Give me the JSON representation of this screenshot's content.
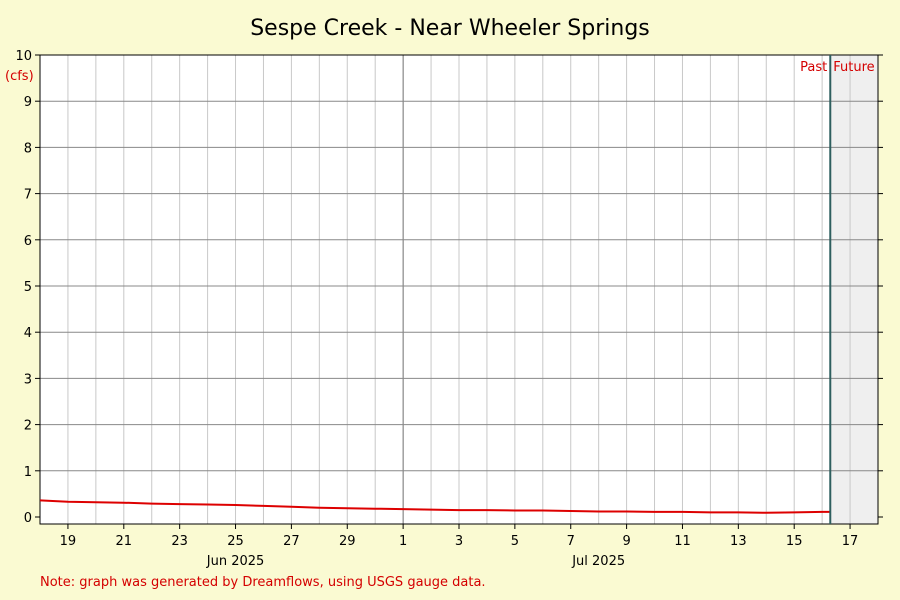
{
  "chart_data": {
    "type": "line",
    "title": "Sespe Creek - Near Wheeler Springs",
    "y_unit": "(cfs)",
    "ylim": [
      0,
      10
    ],
    "y_ticks": [
      0,
      1,
      2,
      3,
      4,
      5,
      6,
      7,
      8,
      9,
      10
    ],
    "x_start": "2025-06-18",
    "x_end": "2025-07-18",
    "x_tick_labels": [
      "19",
      "21",
      "23",
      "25",
      "27",
      "29",
      "1",
      "3",
      "5",
      "7",
      "9",
      "11",
      "13",
      "15",
      "17"
    ],
    "month_labels": [
      "Jun 2025",
      "Jul 2025"
    ],
    "now_marker": "2025-07-16T07:00",
    "past_label": "Past",
    "future_label": "Future",
    "grid": true,
    "colors": {
      "background": "#fafad2",
      "plot": "#ffffff",
      "future_zone": "#efefef",
      "series": "#dd0000",
      "now_line": "#2f5f5f",
      "grid": "#c8c8c8",
      "grid_major": "#707070"
    },
    "series": [
      {
        "x": [
          "2025-06-18T00:00",
          "2025-06-19T00:00",
          "2025-06-20T00:00",
          "2025-06-21T00:00",
          "2025-06-22T00:00",
          "2025-06-23T00:00",
          "2025-06-24T00:00",
          "2025-06-25T00:00",
          "2025-06-26T00:00",
          "2025-06-27T00:00",
          "2025-06-28T00:00",
          "2025-06-29T00:00",
          "2025-06-30T00:00",
          "2025-07-01T00:00",
          "2025-07-02T00:00",
          "2025-07-03T00:00",
          "2025-07-04T00:00",
          "2025-07-05T00:00",
          "2025-07-06T00:00",
          "2025-07-07T00:00",
          "2025-07-08T00:00",
          "2025-07-09T00:00",
          "2025-07-10T00:00",
          "2025-07-11T00:00",
          "2025-07-12T00:00",
          "2025-07-13T00:00",
          "2025-07-14T00:00",
          "2025-07-15T00:00",
          "2025-07-16T00:00",
          "2025-07-16T07:00"
        ],
        "values": [
          0.36,
          0.33,
          0.32,
          0.31,
          0.29,
          0.28,
          0.27,
          0.26,
          0.24,
          0.22,
          0.2,
          0.19,
          0.18,
          0.17,
          0.16,
          0.15,
          0.15,
          0.14,
          0.14,
          0.13,
          0.12,
          0.12,
          0.11,
          0.11,
          0.1,
          0.1,
          0.09,
          0.1,
          0.11,
          0.11
        ]
      }
    ]
  },
  "footer": {
    "note": "Note: graph was generated by Dreamflows, using USGS gauge data."
  }
}
